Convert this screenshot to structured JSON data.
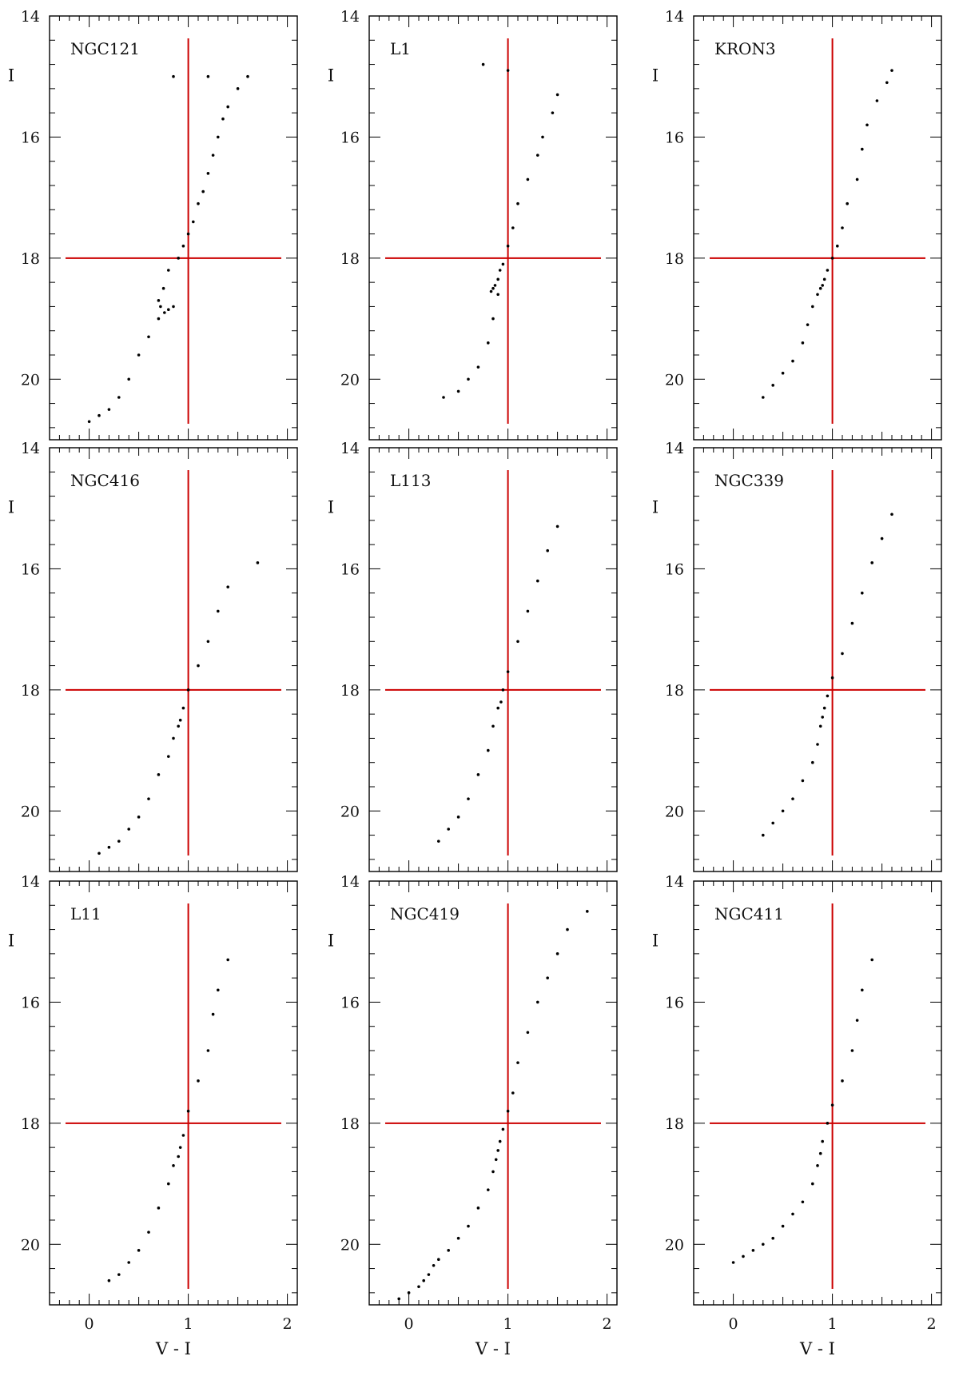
{
  "colors": {
    "guide_lines": "#cc0000",
    "points": "#000000",
    "frame": "#000000"
  },
  "chart_data": [
    {
      "type": "scatter",
      "title": "NGC121",
      "xlabel": "",
      "ylabel": "I",
      "xlim": [
        -0.4,
        2.1
      ],
      "ylim": [
        21,
        14
      ],
      "guide_x": 1,
      "guide_y": 18,
      "points": [
        [
          0.85,
          15.0
        ],
        [
          1.2,
          15.0
        ],
        [
          1.6,
          15.0
        ],
        [
          1.5,
          15.2
        ],
        [
          1.4,
          15.5
        ],
        [
          1.35,
          15.7
        ],
        [
          1.3,
          16.0
        ],
        [
          1.25,
          16.3
        ],
        [
          1.2,
          16.6
        ],
        [
          1.15,
          16.9
        ],
        [
          1.1,
          17.1
        ],
        [
          1.05,
          17.4
        ],
        [
          1.0,
          17.6
        ],
        [
          0.95,
          17.8
        ],
        [
          0.9,
          18.0
        ],
        [
          0.8,
          18.2
        ],
        [
          0.75,
          18.5
        ],
        [
          0.7,
          18.7
        ],
        [
          0.72,
          18.8
        ],
        [
          0.76,
          18.9
        ],
        [
          0.8,
          18.85
        ],
        [
          0.85,
          18.8
        ],
        [
          0.7,
          19.0
        ],
        [
          0.6,
          19.3
        ],
        [
          0.5,
          19.6
        ],
        [
          0.4,
          20.0
        ],
        [
          0.3,
          20.3
        ],
        [
          0.2,
          20.5
        ],
        [
          0.1,
          20.6
        ],
        [
          0.0,
          20.7
        ]
      ]
    },
    {
      "type": "scatter",
      "title": "L1",
      "xlabel": "",
      "ylabel": "I",
      "xlim": [
        -0.4,
        2.1
      ],
      "ylim": [
        21,
        14
      ],
      "guide_x": 1,
      "guide_y": 18,
      "points": [
        [
          0.75,
          14.8
        ],
        [
          1.0,
          14.9
        ],
        [
          1.5,
          15.3
        ],
        [
          1.45,
          15.6
        ],
        [
          1.35,
          16.0
        ],
        [
          1.3,
          16.3
        ],
        [
          1.2,
          16.7
        ],
        [
          1.1,
          17.1
        ],
        [
          1.05,
          17.5
        ],
        [
          1.0,
          17.8
        ],
        [
          0.95,
          18.1
        ],
        [
          0.92,
          18.2
        ],
        [
          0.9,
          18.35
        ],
        [
          0.87,
          18.45
        ],
        [
          0.85,
          18.5
        ],
        [
          0.83,
          18.55
        ],
        [
          0.9,
          18.6
        ],
        [
          0.85,
          19.0
        ],
        [
          0.8,
          19.4
        ],
        [
          0.7,
          19.8
        ],
        [
          0.6,
          20.0
        ],
        [
          0.5,
          20.2
        ],
        [
          0.35,
          20.3
        ]
      ]
    },
    {
      "type": "scatter",
      "title": "KRON3",
      "xlabel": "",
      "ylabel": "I",
      "xlim": [
        -0.4,
        2.1
      ],
      "ylim": [
        21,
        14
      ],
      "guide_x": 1,
      "guide_y": 18,
      "points": [
        [
          1.6,
          14.9
        ],
        [
          1.55,
          15.1
        ],
        [
          1.45,
          15.4
        ],
        [
          1.35,
          15.8
        ],
        [
          1.3,
          16.2
        ],
        [
          1.25,
          16.7
        ],
        [
          1.15,
          17.1
        ],
        [
          1.1,
          17.5
        ],
        [
          1.05,
          17.8
        ],
        [
          1.0,
          18.0
        ],
        [
          0.95,
          18.2
        ],
        [
          0.92,
          18.35
        ],
        [
          0.9,
          18.45
        ],
        [
          0.88,
          18.5
        ],
        [
          0.85,
          18.6
        ],
        [
          0.8,
          18.8
        ],
        [
          0.75,
          19.1
        ],
        [
          0.7,
          19.4
        ],
        [
          0.6,
          19.7
        ],
        [
          0.5,
          19.9
        ],
        [
          0.4,
          20.1
        ],
        [
          0.3,
          20.3
        ]
      ]
    },
    {
      "type": "scatter",
      "title": "NGC416",
      "xlabel": "",
      "ylabel": "I",
      "xlim": [
        -0.4,
        2.1
      ],
      "ylim": [
        21,
        14
      ],
      "guide_x": 1,
      "guide_y": 18,
      "points": [
        [
          1.7,
          15.9
        ],
        [
          1.4,
          16.3
        ],
        [
          1.3,
          16.7
        ],
        [
          1.2,
          17.2
        ],
        [
          1.1,
          17.6
        ],
        [
          1.0,
          18.0
        ],
        [
          0.95,
          18.3
        ],
        [
          0.92,
          18.5
        ],
        [
          0.9,
          18.6
        ],
        [
          0.85,
          18.8
        ],
        [
          0.8,
          19.1
        ],
        [
          0.7,
          19.4
        ],
        [
          0.6,
          19.8
        ],
        [
          0.5,
          20.1
        ],
        [
          0.4,
          20.3
        ],
        [
          0.3,
          20.5
        ],
        [
          0.2,
          20.6
        ],
        [
          0.1,
          20.7
        ]
      ]
    },
    {
      "type": "scatter",
      "title": "L113",
      "xlabel": "",
      "ylabel": "I",
      "xlim": [
        -0.4,
        2.1
      ],
      "ylim": [
        21,
        14
      ],
      "guide_x": 1,
      "guide_y": 18,
      "points": [
        [
          1.5,
          15.3
        ],
        [
          1.4,
          15.7
        ],
        [
          1.3,
          16.2
        ],
        [
          1.2,
          16.7
        ],
        [
          1.1,
          17.2
        ],
        [
          1.0,
          17.7
        ],
        [
          0.95,
          18.0
        ],
        [
          0.93,
          18.2
        ],
        [
          0.9,
          18.3
        ],
        [
          0.85,
          18.6
        ],
        [
          0.8,
          19.0
        ],
        [
          0.7,
          19.4
        ],
        [
          0.6,
          19.8
        ],
        [
          0.5,
          20.1
        ],
        [
          0.4,
          20.3
        ],
        [
          0.3,
          20.5
        ]
      ]
    },
    {
      "type": "scatter",
      "title": "NGC339",
      "xlabel": "",
      "ylabel": "I",
      "xlim": [
        -0.4,
        2.1
      ],
      "ylim": [
        21,
        14
      ],
      "guide_x": 1,
      "guide_y": 18,
      "points": [
        [
          1.6,
          15.1
        ],
        [
          1.5,
          15.5
        ],
        [
          1.4,
          15.9
        ],
        [
          1.3,
          16.4
        ],
        [
          1.2,
          16.9
        ],
        [
          1.1,
          17.4
        ],
        [
          1.0,
          17.8
        ],
        [
          0.95,
          18.1
        ],
        [
          0.92,
          18.3
        ],
        [
          0.9,
          18.45
        ],
        [
          0.88,
          18.6
        ],
        [
          0.85,
          18.9
        ],
        [
          0.8,
          19.2
        ],
        [
          0.7,
          19.5
        ],
        [
          0.6,
          19.8
        ],
        [
          0.5,
          20.0
        ],
        [
          0.4,
          20.2
        ],
        [
          0.3,
          20.4
        ]
      ]
    },
    {
      "type": "scatter",
      "title": "L11",
      "xlabel": "V - I",
      "ylabel": "I",
      "xlim": [
        -0.4,
        2.1
      ],
      "ylim": [
        21,
        14
      ],
      "guide_x": 1,
      "guide_y": 18,
      "points": [
        [
          1.4,
          15.3
        ],
        [
          1.3,
          15.8
        ],
        [
          1.25,
          16.2
        ],
        [
          1.2,
          16.8
        ],
        [
          1.1,
          17.3
        ],
        [
          1.0,
          17.8
        ],
        [
          0.95,
          18.2
        ],
        [
          0.92,
          18.4
        ],
        [
          0.9,
          18.55
        ],
        [
          0.85,
          18.7
        ],
        [
          0.8,
          19.0
        ],
        [
          0.7,
          19.4
        ],
        [
          0.6,
          19.8
        ],
        [
          0.5,
          20.1
        ],
        [
          0.4,
          20.3
        ],
        [
          0.3,
          20.5
        ],
        [
          0.2,
          20.6
        ]
      ]
    },
    {
      "type": "scatter",
      "title": "NGC419",
      "xlabel": "V - I",
      "ylabel": "I",
      "xlim": [
        -0.4,
        2.1
      ],
      "ylim": [
        21,
        14
      ],
      "guide_x": 1,
      "guide_y": 18,
      "points": [
        [
          1.8,
          14.5
        ],
        [
          1.6,
          14.8
        ],
        [
          1.5,
          15.2
        ],
        [
          1.4,
          15.6
        ],
        [
          1.3,
          16.0
        ],
        [
          1.2,
          16.5
        ],
        [
          1.1,
          17.0
        ],
        [
          1.05,
          17.5
        ],
        [
          1.0,
          17.8
        ],
        [
          0.95,
          18.1
        ],
        [
          0.92,
          18.3
        ],
        [
          0.9,
          18.45
        ],
        [
          0.88,
          18.6
        ],
        [
          0.85,
          18.8
        ],
        [
          0.8,
          19.1
        ],
        [
          0.7,
          19.4
        ],
        [
          0.6,
          19.7
        ],
        [
          0.5,
          19.9
        ],
        [
          0.4,
          20.1
        ],
        [
          0.3,
          20.25
        ],
        [
          0.25,
          20.35
        ],
        [
          0.2,
          20.5
        ],
        [
          0.15,
          20.6
        ],
        [
          0.1,
          20.7
        ],
        [
          0.0,
          20.8
        ],
        [
          -0.1,
          20.9
        ]
      ]
    },
    {
      "type": "scatter",
      "title": "NGC411",
      "xlabel": "V - I",
      "ylabel": "I",
      "xlim": [
        -0.4,
        2.1
      ],
      "ylim": [
        21,
        14
      ],
      "guide_x": 1,
      "guide_y": 18,
      "points": [
        [
          1.4,
          15.3
        ],
        [
          1.3,
          15.8
        ],
        [
          1.25,
          16.3
        ],
        [
          1.2,
          16.8
        ],
        [
          1.1,
          17.3
        ],
        [
          1.0,
          17.7
        ],
        [
          0.95,
          18.0
        ],
        [
          0.9,
          18.3
        ],
        [
          0.88,
          18.5
        ],
        [
          0.85,
          18.7
        ],
        [
          0.8,
          19.0
        ],
        [
          0.7,
          19.3
        ],
        [
          0.6,
          19.5
        ],
        [
          0.5,
          19.7
        ],
        [
          0.4,
          19.9
        ],
        [
          0.3,
          20.0
        ],
        [
          0.2,
          20.1
        ],
        [
          0.1,
          20.2
        ],
        [
          0.0,
          20.3
        ]
      ]
    }
  ]
}
